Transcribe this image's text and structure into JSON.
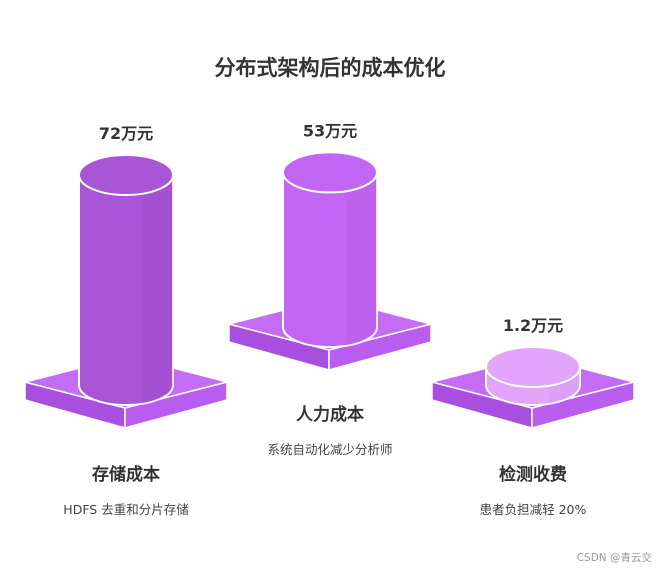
{
  "chart_data": {
    "type": "bar",
    "title": "分布式架构后的成本优化",
    "unit": "万元",
    "categories": [
      "存储成本",
      "人力成本",
      "检测收费"
    ],
    "values": [
      72,
      53,
      1.2
    ],
    "value_labels": [
      "72万元",
      "53万元",
      "1.2万元"
    ],
    "descriptions": [
      "HDFS 去重和分片存储",
      "系统自动化减少分析师",
      "患者负担减轻 20%"
    ],
    "colors": [
      "#a855d6",
      "#c266f5",
      "#e2a5fb"
    ],
    "base_color": "#c56cf7",
    "xlabel": "",
    "ylabel": ""
  },
  "watermark": "CSDN @青云交"
}
